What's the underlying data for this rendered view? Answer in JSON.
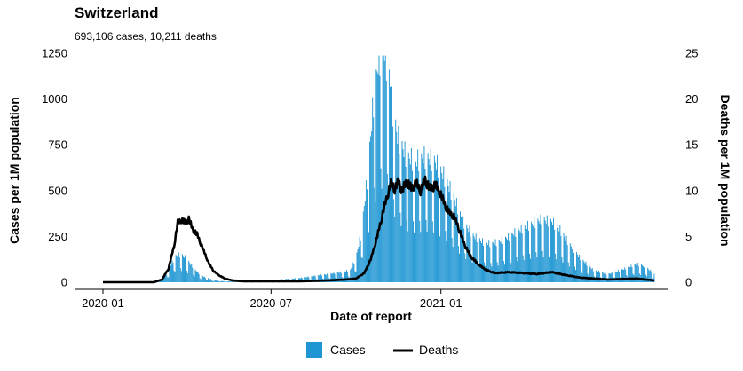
{
  "chart_data": {
    "type": "bar",
    "title": "Switzerland",
    "subtitle": "693,106 cases, 10,211 deaths",
    "xlabel": "Date of report",
    "ylabel_left": "Cases per 1M population",
    "ylabel_right": "Deaths per 1M population",
    "x_ticks": [
      "2020-01",
      "2020-07",
      "2021-01"
    ],
    "y_left_ticks": [
      "0",
      "250",
      "500",
      "750",
      "1000",
      "1250"
    ],
    "y_right_ticks": [
      "0",
      "5",
      "10",
      "15",
      "20",
      "25"
    ],
    "ylim_left": [
      0,
      1250
    ],
    "ylim_right": [
      0,
      25
    ],
    "xlim": [
      "2020-01-01",
      "2021-08-20"
    ],
    "grid": false,
    "legend_position": "bottom",
    "colors": {
      "cases": "#1f96d3",
      "deaths": "#000000"
    },
    "series": [
      {
        "name": "Cases",
        "type": "bar",
        "axis": "left",
        "points": [
          [
            "2020-01-01",
            0
          ],
          [
            "2020-02-20",
            0
          ],
          [
            "2020-03-01",
            5
          ],
          [
            "2020-03-10",
            40
          ],
          [
            "2020-03-15",
            90
          ],
          [
            "2020-03-20",
            130
          ],
          [
            "2020-03-25",
            140
          ],
          [
            "2020-03-31",
            120
          ],
          [
            "2020-04-05",
            90
          ],
          [
            "2020-04-10",
            60
          ],
          [
            "2020-04-15",
            40
          ],
          [
            "2020-04-20",
            25
          ],
          [
            "2020-04-30",
            10
          ],
          [
            "2020-05-10",
            5
          ],
          [
            "2020-05-20",
            3
          ],
          [
            "2020-06-01",
            3
          ],
          [
            "2020-06-15",
            4
          ],
          [
            "2020-07-01",
            10
          ],
          [
            "2020-07-15",
            15
          ],
          [
            "2020-08-01",
            20
          ],
          [
            "2020-08-15",
            30
          ],
          [
            "2020-09-01",
            40
          ],
          [
            "2020-09-15",
            50
          ],
          [
            "2020-09-25",
            60
          ],
          [
            "2020-10-01",
            120
          ],
          [
            "2020-10-07",
            250
          ],
          [
            "2020-10-14",
            550
          ],
          [
            "2020-10-20",
            900
          ],
          [
            "2020-10-26",
            1120
          ],
          [
            "2020-11-01",
            1150
          ],
          [
            "2020-11-05",
            1050
          ],
          [
            "2020-11-10",
            850
          ],
          [
            "2020-11-15",
            720
          ],
          [
            "2020-11-25",
            620
          ],
          [
            "2020-12-05",
            600
          ],
          [
            "2020-12-15",
            620
          ],
          [
            "2020-12-25",
            600
          ],
          [
            "2021-01-05",
            520
          ],
          [
            "2021-01-15",
            420
          ],
          [
            "2021-01-25",
            300
          ],
          [
            "2021-02-05",
            230
          ],
          [
            "2021-02-15",
            200
          ],
          [
            "2021-02-25",
            190
          ],
          [
            "2021-03-10",
            210
          ],
          [
            "2021-03-20",
            240
          ],
          [
            "2021-04-01",
            270
          ],
          [
            "2021-04-10",
            290
          ],
          [
            "2021-04-20",
            310
          ],
          [
            "2021-05-01",
            300
          ],
          [
            "2021-05-10",
            260
          ],
          [
            "2021-05-20",
            190
          ],
          [
            "2021-06-01",
            120
          ],
          [
            "2021-06-15",
            60
          ],
          [
            "2021-07-01",
            40
          ],
          [
            "2021-07-15",
            60
          ],
          [
            "2021-08-01",
            90
          ],
          [
            "2021-08-10",
            80
          ],
          [
            "2021-08-20",
            40
          ]
        ]
      },
      {
        "name": "Deaths",
        "type": "line",
        "axis": "right",
        "points": [
          [
            "2020-01-01",
            0
          ],
          [
            "2020-02-25",
            0
          ],
          [
            "2020-03-05",
            0.3
          ],
          [
            "2020-03-12",
            1.5
          ],
          [
            "2020-03-18",
            4
          ],
          [
            "2020-03-22",
            6.5
          ],
          [
            "2020-03-26",
            6.8
          ],
          [
            "2020-03-30",
            6.5
          ],
          [
            "2020-04-03",
            6.9
          ],
          [
            "2020-04-07",
            5.8
          ],
          [
            "2020-04-12",
            5.2
          ],
          [
            "2020-04-16",
            4.2
          ],
          [
            "2020-04-20",
            3.2
          ],
          [
            "2020-04-25",
            2.0
          ],
          [
            "2020-04-30",
            1.2
          ],
          [
            "2020-05-05",
            0.8
          ],
          [
            "2020-05-12",
            0.4
          ],
          [
            "2020-05-20",
            0.2
          ],
          [
            "2020-06-01",
            0.1
          ],
          [
            "2020-07-01",
            0.1
          ],
          [
            "2020-08-01",
            0.1
          ],
          [
            "2020-09-01",
            0.2
          ],
          [
            "2020-09-20",
            0.3
          ],
          [
            "2020-10-01",
            0.4
          ],
          [
            "2020-10-10",
            1.0
          ],
          [
            "2020-10-17",
            2.5
          ],
          [
            "2020-10-24",
            5.0
          ],
          [
            "2020-10-30",
            7.5
          ],
          [
            "2020-11-04",
            9.5
          ],
          [
            "2020-11-08",
            10.8
          ],
          [
            "2020-11-12",
            10.2
          ],
          [
            "2020-11-16",
            11.0
          ],
          [
            "2020-11-20",
            10.0
          ],
          [
            "2020-11-25",
            11.0
          ],
          [
            "2020-11-30",
            10.2
          ],
          [
            "2020-12-05",
            10.8
          ],
          [
            "2020-12-10",
            10.0
          ],
          [
            "2020-12-15",
            11.2
          ],
          [
            "2020-12-20",
            10.2
          ],
          [
            "2020-12-26",
            10.6
          ],
          [
            "2020-12-31",
            9.8
          ],
          [
            "2021-01-05",
            8.5
          ],
          [
            "2021-01-10",
            7.6
          ],
          [
            "2021-01-15",
            7.2
          ],
          [
            "2021-01-20",
            6.0
          ],
          [
            "2021-01-25",
            4.5
          ],
          [
            "2021-02-01",
            3.0
          ],
          [
            "2021-02-08",
            2.2
          ],
          [
            "2021-02-15",
            1.6
          ],
          [
            "2021-02-22",
            1.2
          ],
          [
            "2021-03-01",
            1.0
          ],
          [
            "2021-03-15",
            1.1
          ],
          [
            "2021-04-01",
            1.0
          ],
          [
            "2021-04-15",
            0.9
          ],
          [
            "2021-05-01",
            1.1
          ],
          [
            "2021-05-15",
            0.8
          ],
          [
            "2021-06-01",
            0.5
          ],
          [
            "2021-07-01",
            0.3
          ],
          [
            "2021-08-01",
            0.4
          ],
          [
            "2021-08-20",
            0.2
          ]
        ]
      }
    ]
  }
}
